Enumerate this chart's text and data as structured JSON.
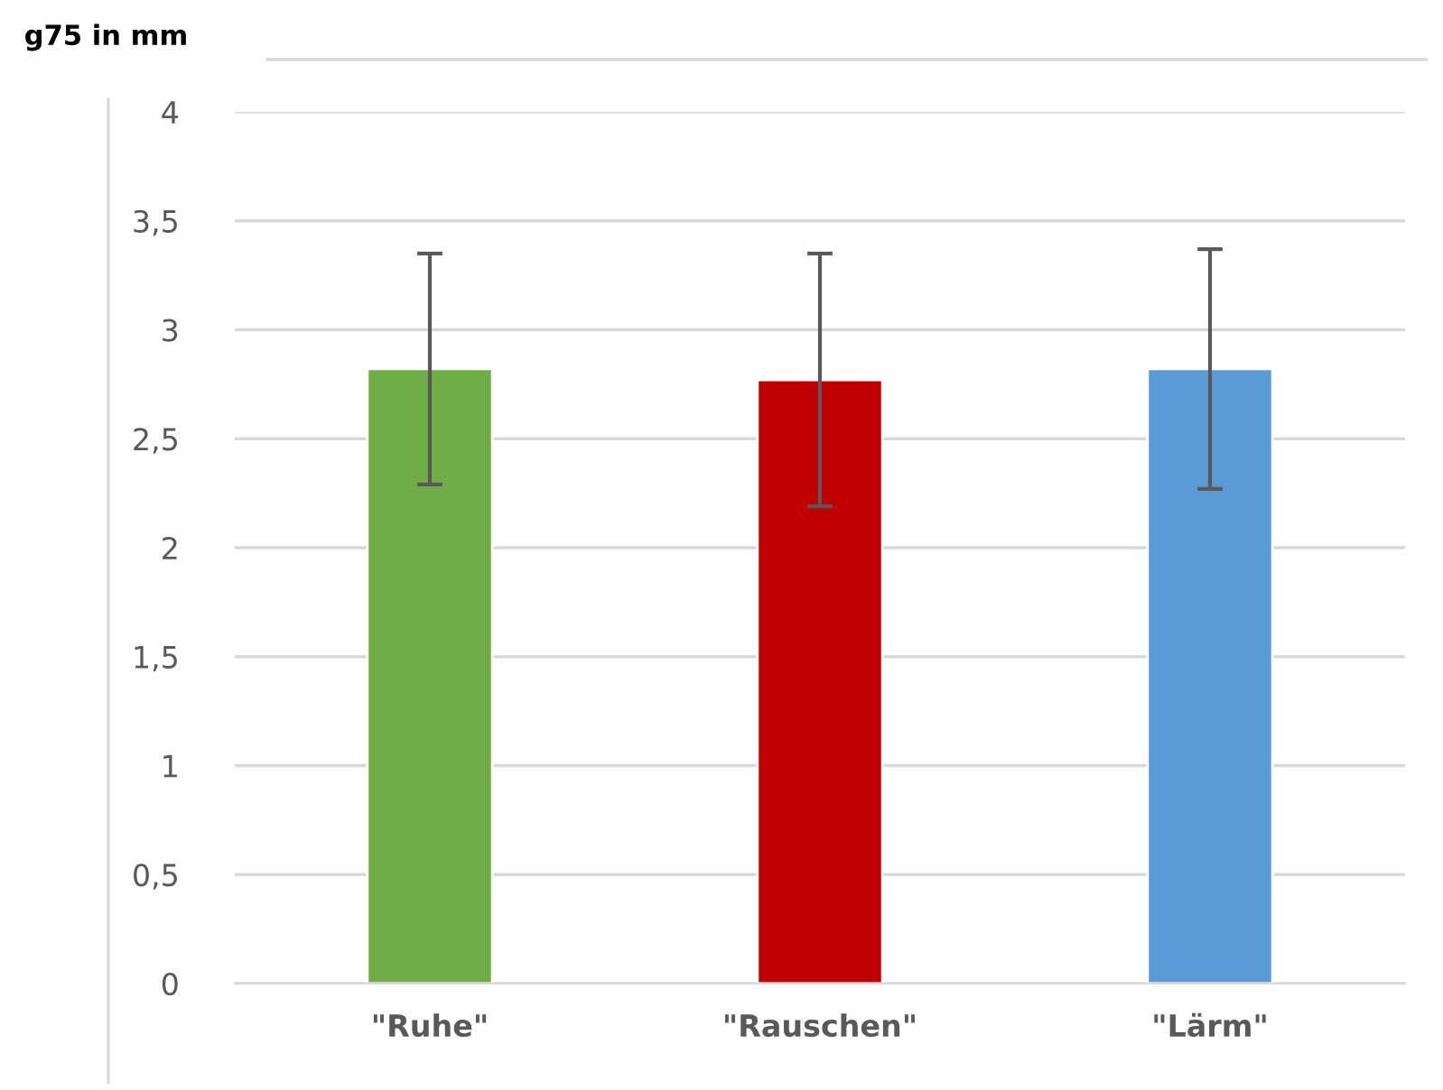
{
  "chart_data": {
    "type": "bar",
    "ylabel": "g75 in mm",
    "categories": [
      "\"Ruhe\"",
      "\"Rauschen\"",
      "\"Lärm\""
    ],
    "values": [
      2.82,
      2.77,
      2.82
    ],
    "colors": [
      "#70ad47",
      "#c00000",
      "#5b9bd5"
    ],
    "errors": [
      [
        2.29,
        3.35
      ],
      [
        2.19,
        3.35
      ],
      [
        2.27,
        3.37
      ]
    ],
    "ylim": [
      0,
      4
    ],
    "yticks": [
      0,
      {
        "value": 0.5,
        "label": "0,5"
      },
      1,
      {
        "value": 1.5,
        "label": "1,5"
      },
      2,
      {
        "value": 2.5,
        "label": "2,5"
      },
      3,
      {
        "value": 3.5,
        "label": "3,5"
      },
      4
    ],
    "grid": "y",
    "legend": false
  }
}
